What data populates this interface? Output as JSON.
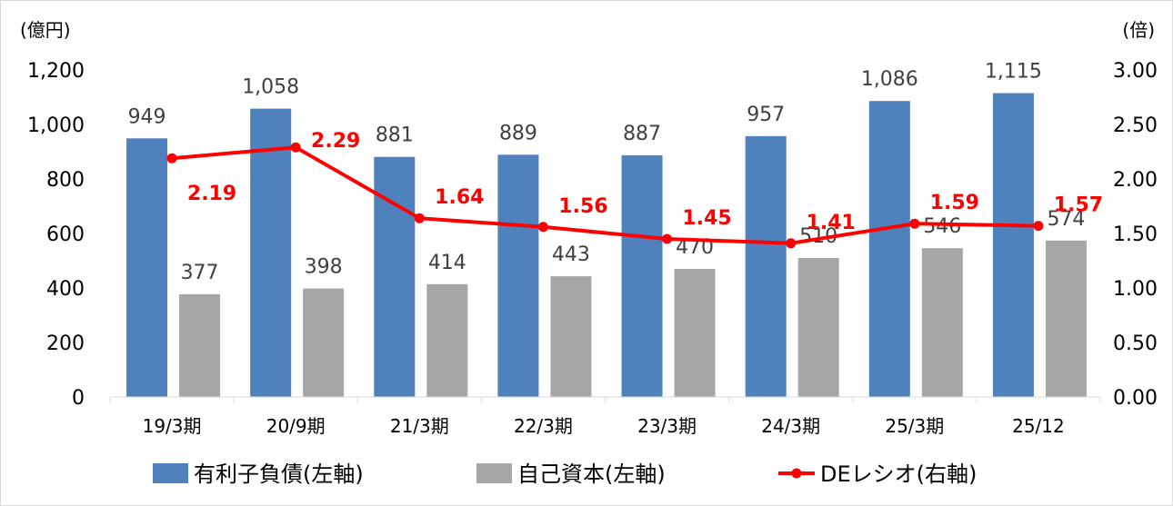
{
  "chart_data": {
    "type": "bar",
    "categories": [
      "19/3期",
      "20/9期",
      "21/3期",
      "22/3期",
      "23/3期",
      "24/3期",
      "25/3期",
      "25/12"
    ],
    "series": [
      {
        "name": "有利子負債(左軸)",
        "type": "bar",
        "axis": "left",
        "color": "#4f81bd",
        "values": [
          949,
          1058,
          881,
          889,
          887,
          957,
          1086,
          1115
        ],
        "labels": [
          "949",
          "1,058",
          "881",
          "889",
          "887",
          "957",
          "1,086",
          "1,115"
        ]
      },
      {
        "name": "自己資本(左軸)",
        "type": "bar",
        "axis": "left",
        "color": "#a6a6a6",
        "values": [
          377,
          398,
          414,
          443,
          470,
          510,
          546,
          574
        ],
        "labels": [
          "377",
          "398",
          "414",
          "443",
          "470",
          "510",
          "546",
          "574"
        ]
      },
      {
        "name": "DEレシオ(右軸)",
        "type": "line",
        "axis": "right",
        "color": "#ff0000",
        "values": [
          2.19,
          2.29,
          1.64,
          1.56,
          1.45,
          1.41,
          1.59,
          1.57
        ],
        "labels": [
          "2.19",
          "2.29",
          "1.64",
          "1.56",
          "1.45",
          "1.41",
          "1.59",
          "1.57"
        ]
      }
    ],
    "y_left": {
      "unit": "(億円)",
      "ylim": [
        0,
        1200
      ],
      "ticks": [
        "0",
        "200",
        "400",
        "600",
        "800",
        "1,000",
        "1,200"
      ]
    },
    "y_right": {
      "unit": "(倍)",
      "ylim": [
        0,
        3
      ],
      "ticks": [
        "0.00",
        "0.50",
        "1.00",
        "1.50",
        "2.00",
        "2.50",
        "3.00"
      ]
    },
    "grid": false,
    "legend_position": "bottom"
  }
}
